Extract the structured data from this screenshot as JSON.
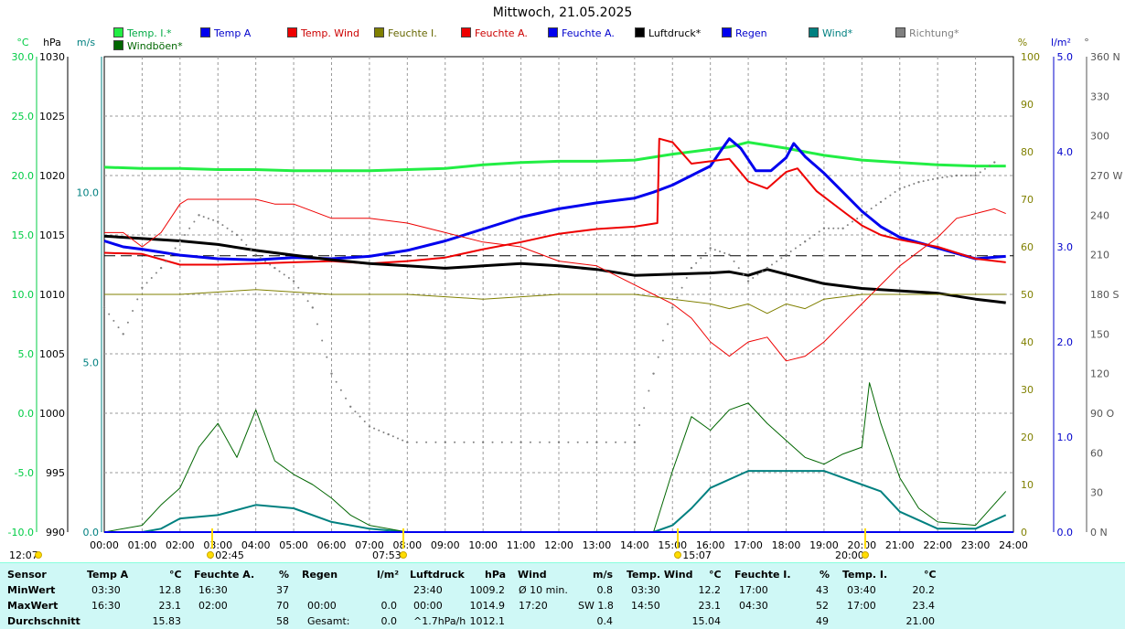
{
  "title": "Mittwoch, 21.05.2025",
  "axis_units": {
    "temp": "°C",
    "pressure": "hPa",
    "wind": "m/s",
    "humidity": "%",
    "rain": "l/m²",
    "direction": "°"
  },
  "legend": [
    {
      "label": "Temp. I.*",
      "color": "#22ee44",
      "text_color": "#00aa44"
    },
    {
      "label": "Temp A",
      "color": "#0000ee",
      "text_color": "#0000cc"
    },
    {
      "label": "Temp. Wind",
      "color": "#ee0000",
      "text_color": "#cc0000"
    },
    {
      "label": "Feuchte I.",
      "color": "#808000",
      "text_color": "#666600"
    },
    {
      "label": "Feuchte A.",
      "color": "#ee0000",
      "text_color": "#cc0000"
    },
    {
      "label": "Feuchte A.",
      "color": "#0000ee",
      "text_color": "#0000cc"
    },
    {
      "label": "Luftdruck*",
      "color": "#000000",
      "text_color": "#000000"
    },
    {
      "label": "Regen",
      "color": "#0000ee",
      "text_color": "#0000cc"
    },
    {
      "label": "Wind*",
      "color": "#008080",
      "text_color": "#008080"
    },
    {
      "label": "Richtung*",
      "color": "#808080",
      "text_color": "#808080"
    },
    {
      "label": "Windböen*",
      "color": "#006600",
      "text_color": "#006600"
    }
  ],
  "sun_markers": {
    "sunrise": "12:07",
    "sunrise_arrow": "02:45",
    "noon": "07:53",
    "noon_arrow": "15:07",
    "sunset": "20:00"
  },
  "chart_data": {
    "type": "line",
    "x_ticks": [
      "00:00",
      "01:00",
      "02:00",
      "03:00",
      "04:00",
      "05:00",
      "06:00",
      "07:00",
      "08:00",
      "09:00",
      "10:00",
      "11:00",
      "12:00",
      "13:00",
      "14:00",
      "15:00",
      "16:00",
      "17:00",
      "18:00",
      "19:00",
      "20:00",
      "21:00",
      "22:00",
      "23:00",
      "24:00"
    ],
    "axes": {
      "temp": {
        "ticks": [
          "30.0",
          "25.0",
          "20.0",
          "15.0",
          "10.0",
          "5.0",
          "0.0",
          "-5.0",
          "-10.0"
        ],
        "range": [
          -10,
          30
        ]
      },
      "pressure": {
        "ticks": [
          "1030",
          "1025",
          "1020",
          "1015",
          "1010",
          "1005",
          "1000",
          "995",
          "990"
        ],
        "range": [
          990,
          1030
        ]
      },
      "wind": {
        "ticks": [
          "10.0",
          "5.0",
          "0.0"
        ],
        "range": [
          0,
          14
        ]
      },
      "humidity": {
        "ticks": [
          "100",
          "90",
          "80",
          "70",
          "60",
          "50",
          "40",
          "30",
          "20",
          "10",
          "0"
        ],
        "range": [
          0,
          100
        ]
      },
      "rain": {
        "ticks": [
          "5.0",
          "4.0",
          "3.0",
          "2.0",
          "1.0",
          "0.0"
        ],
        "range": [
          0,
          5
        ]
      },
      "direction": {
        "ticks": [
          "360 N",
          "330",
          "300",
          "270 W",
          "240",
          "210",
          "180 S",
          "150",
          "120",
          "90 O",
          "60",
          "30",
          "0 N"
        ],
        "range": [
          0,
          360
        ]
      }
    },
    "reference_line_hpa": 1013.25,
    "series": [
      {
        "name": "Temp. I.*",
        "axis": "temp",
        "color": "#22ee44",
        "width": 3,
        "x": [
          0,
          1,
          2,
          3,
          4,
          5,
          6,
          7,
          8,
          9,
          10,
          11,
          12,
          13,
          14,
          15,
          16,
          16.5,
          17,
          18,
          19,
          20,
          21,
          22,
          23,
          23.8
        ],
        "y": [
          20.7,
          20.6,
          20.6,
          20.5,
          20.5,
          20.4,
          20.4,
          20.4,
          20.5,
          20.6,
          20.9,
          21.1,
          21.2,
          21.2,
          21.3,
          21.8,
          22.2,
          22.4,
          22.8,
          22.3,
          21.7,
          21.3,
          21.1,
          20.9,
          20.8,
          20.8
        ]
      },
      {
        "name": "Temp A",
        "axis": "temp",
        "color": "#0000ee",
        "width": 3,
        "x": [
          0,
          0.5,
          1,
          2,
          3,
          4,
          5,
          6,
          7,
          8,
          9,
          10,
          11,
          12,
          13,
          14,
          14.5,
          15,
          15.5,
          16,
          16.3,
          16.5,
          16.8,
          17.2,
          17.6,
          18,
          18.2,
          18.5,
          19,
          19.5,
          20,
          20.5,
          21,
          22,
          23,
          23.8
        ],
        "y": [
          14.5,
          14.0,
          13.8,
          13.3,
          13.0,
          12.9,
          13.1,
          13.0,
          13.2,
          13.7,
          14.5,
          15.5,
          16.5,
          17.2,
          17.7,
          18.1,
          18.6,
          19.2,
          20.0,
          20.8,
          22.2,
          23.1,
          22.3,
          20.4,
          20.4,
          21.5,
          22.7,
          21.6,
          20.2,
          18.6,
          17.0,
          15.7,
          14.8,
          13.9,
          13.0,
          13.2
        ]
      },
      {
        "name": "Temp. Wind",
        "axis": "temp",
        "color": "#ee0000",
        "width": 2,
        "x": [
          0,
          1,
          2,
          3,
          4,
          5,
          6,
          7,
          8,
          9,
          10,
          11,
          12,
          13,
          14,
          14.6,
          14.65,
          15,
          15.5,
          16,
          16.5,
          17,
          17.5,
          18,
          18.3,
          18.8,
          19.5,
          20,
          20.5,
          21,
          22,
          23,
          23.8
        ],
        "y": [
          13.5,
          13.4,
          12.5,
          12.5,
          12.6,
          12.7,
          12.8,
          12.6,
          12.8,
          13.1,
          13.8,
          14.4,
          15.1,
          15.5,
          15.7,
          16.0,
          23.1,
          22.8,
          21.0,
          21.2,
          21.4,
          19.5,
          18.9,
          20.3,
          20.6,
          18.7,
          17.0,
          15.8,
          15.0,
          14.6,
          14.0,
          13.0,
          12.7
        ]
      },
      {
        "name": "Luftdruck*",
        "axis": "pressure",
        "color": "#000000",
        "width": 3,
        "x": [
          0,
          1,
          2,
          3,
          4,
          5,
          6,
          7,
          8,
          9,
          10,
          11,
          12,
          13,
          14,
          15,
          16,
          16.5,
          17,
          17.5,
          18,
          19,
          20,
          21,
          22,
          23,
          23.8
        ],
        "y": [
          1014.9,
          1014.7,
          1014.5,
          1014.2,
          1013.7,
          1013.3,
          1012.9,
          1012.6,
          1012.4,
          1012.2,
          1012.4,
          1012.6,
          1012.4,
          1012.1,
          1011.6,
          1011.7,
          1011.8,
          1011.9,
          1011.6,
          1012.1,
          1011.7,
          1010.9,
          1010.5,
          1010.3,
          1010.1,
          1009.6,
          1009.3
        ]
      },
      {
        "name": "Feuchte A.",
        "axis": "humidity",
        "color": "#ee0000",
        "width": 1,
        "x": [
          0,
          0.5,
          1,
          1.5,
          2,
          2.2,
          3,
          4,
          4.5,
          5,
          6,
          7,
          8,
          9,
          10,
          11,
          12,
          13,
          13.5,
          14,
          14.5,
          15,
          15.5,
          16,
          16.5,
          17,
          17.5,
          18,
          18.5,
          19,
          19.5,
          20,
          20.5,
          21,
          22,
          22.5,
          23,
          23.5,
          23.8
        ],
        "y": [
          63,
          63,
          60,
          63,
          69,
          70,
          70,
          70,
          69,
          69,
          66,
          66,
          65,
          63,
          61,
          60,
          57,
          56,
          54,
          52,
          50,
          48,
          45,
          40,
          37,
          40,
          41,
          36,
          37,
          40,
          44,
          48,
          52,
          56,
          62,
          66,
          67,
          68,
          67
        ]
      },
      {
        "name": "Feuchte I.",
        "axis": "humidity",
        "color": "#808000",
        "width": 1,
        "x": [
          0,
          2,
          4,
          6,
          8,
          10,
          12,
          14,
          15,
          16,
          16.5,
          17,
          17.5,
          18,
          18.5,
          19,
          20,
          22,
          23.8
        ],
        "y": [
          50,
          50,
          51,
          50,
          50,
          49,
          50,
          50,
          49,
          48,
          47,
          48,
          46,
          48,
          47,
          49,
          50,
          50,
          50
        ]
      },
      {
        "name": "Wind*",
        "axis": "wind",
        "color": "#008080",
        "width": 2,
        "x": [
          0,
          1,
          1.5,
          2,
          3,
          4,
          5,
          6,
          6.5,
          7,
          8,
          14.5,
          15,
          15.5,
          16,
          17,
          18,
          19,
          20,
          20.5,
          21,
          22,
          23,
          23.8
        ],
        "y": [
          0,
          0,
          0.1,
          0.4,
          0.5,
          0.8,
          0.7,
          0.3,
          0.2,
          0.1,
          0,
          0,
          0.2,
          0.7,
          1.3,
          1.8,
          1.8,
          1.8,
          1.4,
          1.2,
          0.6,
          0.1,
          0.1,
          0.5
        ]
      },
      {
        "name": "Windböen*",
        "axis": "wind",
        "color": "#006600",
        "width": 1,
        "x": [
          0,
          1,
          1.5,
          2,
          2.5,
          3,
          3.5,
          4,
          4.5,
          5,
          5.5,
          6,
          6.5,
          7,
          8,
          14.5,
          15,
          15.5,
          16,
          16.5,
          17,
          17.5,
          18,
          18.5,
          19,
          19.5,
          20,
          20.2,
          20.5,
          21,
          21.5,
          22,
          23,
          23.8
        ],
        "y": [
          0,
          0.2,
          0.8,
          1.3,
          2.5,
          3.2,
          2.2,
          3.6,
          2.1,
          1.7,
          1.4,
          1.0,
          0.5,
          0.2,
          0,
          0,
          1.8,
          3.4,
          3.0,
          3.6,
          3.8,
          3.2,
          2.7,
          2.2,
          2.0,
          2.3,
          2.5,
          4.4,
          3.2,
          1.6,
          0.7,
          0.3,
          0.2,
          1.2
        ]
      },
      {
        "name": "Richtung*",
        "axis": "direction",
        "color": "#808080",
        "width": 1,
        "style": "dots",
        "x": [
          0,
          0.5,
          1,
          1.5,
          2,
          2.5,
          3,
          3.5,
          4,
          4.5,
          5,
          5.5,
          6,
          6.5,
          7,
          7.5,
          8,
          9,
          10,
          11,
          12,
          13,
          14,
          14.5,
          15,
          15.5,
          16,
          16.5,
          17,
          17.5,
          18,
          18.5,
          19,
          19.5,
          20,
          20.5,
          21,
          21.5,
          22,
          22.5,
          23,
          23.5
        ],
        "y": [
          170,
          150,
          185,
          200,
          220,
          240,
          235,
          225,
          210,
          200,
          190,
          170,
          120,
          95,
          80,
          74,
          68,
          68,
          68,
          68,
          68,
          68,
          68,
          120,
          170,
          200,
          215,
          210,
          190,
          200,
          210,
          220,
          230,
          230,
          240,
          250,
          260,
          265,
          268,
          270,
          270,
          280
        ]
      },
      {
        "name": "Regen",
        "axis": "rain",
        "color": "#0000ee",
        "width": 2,
        "x": [
          0,
          24
        ],
        "y": [
          0,
          0
        ]
      }
    ]
  },
  "stats": {
    "headers": {
      "sensor": "Sensor",
      "temp_a": "Temp A",
      "temp_a_unit": "°C",
      "hum_a": "Feuchte A.",
      "hum_a_unit": "%",
      "rain": "Regen",
      "rain_unit": "l/m²",
      "press": "Luftdruck",
      "press_unit": "hPa",
      "wind": "Wind",
      "wind_unit": "m/s",
      "temp_wind": "Temp. Wind",
      "temp_wind_unit": "°C",
      "hum_i": "Feuchte I.",
      "hum_i_unit": "%",
      "temp_i": "Temp. I.",
      "temp_i_unit": "°C"
    },
    "min": {
      "label": "MinWert",
      "temp_a_time": "03:30",
      "temp_a_val": "12.8",
      "hum_a_time": "16:30",
      "hum_a_val": "37",
      "rain_time": "",
      "rain_val": "",
      "press_time": "23:40",
      "press_val": "1009.2",
      "wind_time": "Ø 10 min.",
      "wind_dir": "",
      "wind_val": "0.8",
      "temp_wind_time": "03:30",
      "temp_wind_val": "12.2",
      "hum_i_time": "17:00",
      "hum_i_val": "43",
      "temp_i_time": "03:40",
      "temp_i_val": "20.2"
    },
    "max": {
      "label": "MaxWert",
      "temp_a_time": "16:30",
      "temp_a_val": "23.1",
      "hum_a_time": "02:00",
      "hum_a_val": "70",
      "rain_time": "00:00",
      "rain_val": "0.0",
      "press_time": "00:00",
      "press_val": "1014.9",
      "wind_time": "17:20",
      "wind_dir": "SW 1.8",
      "wind_val": "",
      "temp_wind_time": "14:50",
      "temp_wind_val": "23.1",
      "hum_i_time": "04:30",
      "hum_i_val": "52",
      "temp_i_time": "17:00",
      "temp_i_val": "23.4"
    },
    "avg": {
      "label": "Durchschnitt",
      "temp_a_time": "",
      "temp_a_val": "15.83",
      "hum_a_time": "",
      "hum_a_val": "58",
      "rain_time": "Gesamt:",
      "rain_val": "0.0",
      "press_time": "^1.7hPa/h",
      "press_val": "1012.1",
      "wind_time": "",
      "wind_dir": "",
      "wind_val": "0.4",
      "temp_wind_time": "",
      "temp_wind_val": "15.04",
      "hum_i_time": "",
      "hum_i_val": "49",
      "temp_i_time": "",
      "temp_i_val": "21.00"
    }
  }
}
